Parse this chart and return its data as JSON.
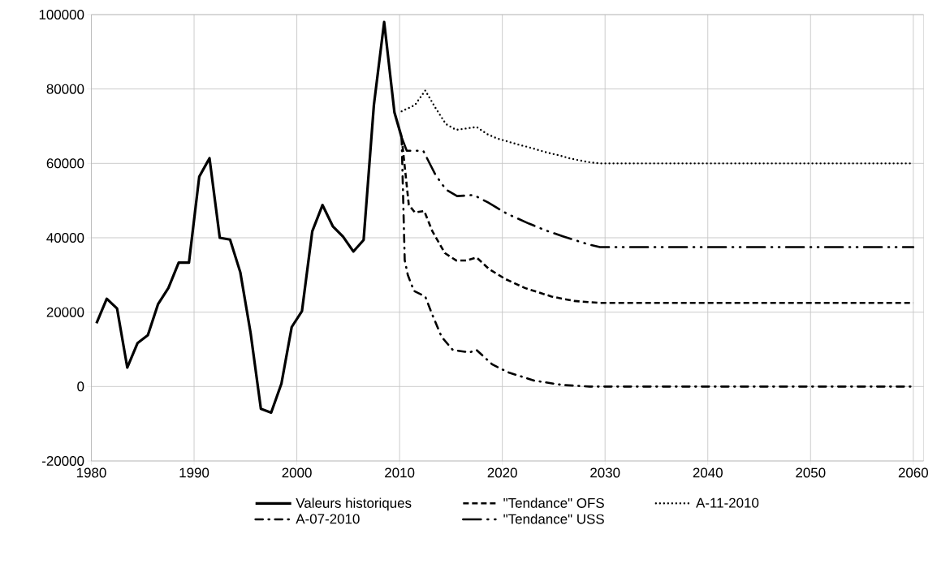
{
  "chart_data": {
    "type": "line",
    "xlim": [
      1980,
      2061
    ],
    "ylim": [
      -20000,
      100000
    ],
    "xticks": [
      1980,
      1990,
      2000,
      2010,
      2020,
      2030,
      2040,
      2050,
      2060
    ],
    "yticks": [
      -20000,
      0,
      20000,
      40000,
      60000,
      80000,
      100000
    ],
    "grid": true,
    "legend": "bottom",
    "series": [
      {
        "name": "Valeurs historiques",
        "color": "#000000",
        "line_style": "solid",
        "x": [
          1980.5,
          1981.5,
          1982.5,
          1983.5,
          1984.5,
          1985.5,
          1986.5,
          1987.5,
          1988.5,
          1989.5,
          1990.5,
          1991.5,
          1992.5,
          1993.5,
          1994.5,
          1995.5,
          1996.5,
          1997.5,
          1998.5,
          1999.5,
          2000.5,
          2001.5,
          2002.5,
          2003.5,
          2004.5,
          2005.5,
          2006.5,
          2007.5,
          2008.5,
          2009.5,
          2010.2
        ],
        "values": [
          17000,
          23600,
          21000,
          5100,
          11700,
          13800,
          22200,
          26500,
          33300,
          33300,
          56400,
          61400,
          40000,
          39500,
          30700,
          14400,
          -6000,
          -7000,
          800,
          16000,
          20300,
          41700,
          48800,
          43100,
          40300,
          36300,
          39400,
          75700,
          98000,
          73700,
          67000
        ]
      },
      {
        "name": "\"Tendance\" OFS",
        "color": "#000000",
        "line_style": "dashed",
        "x": [
          2010.2,
          2010.9,
          2011.5,
          2012.4,
          2013.2,
          2014.4,
          2015.5,
          2016.5,
          2017.5,
          2018.7,
          2020.3,
          2022.2,
          2024.8,
          2027.0,
          2029.5,
          2060
        ],
        "values": [
          67000,
          48800,
          46800,
          47200,
          41700,
          35900,
          33900,
          33900,
          34700,
          31600,
          28900,
          26500,
          24200,
          23000,
          22500,
          22500
        ]
      },
      {
        "name": "A-11-2010",
        "color": "#000000",
        "line_style": "dotted",
        "x": [
          2010.2,
          2011.5,
          2012.5,
          2013.5,
          2014.5,
          2015.5,
          2016.5,
          2017.5,
          2018.5,
          2019.5,
          2020.5,
          2021.5,
          2022.5,
          2023.5,
          2024.5,
          2025.5,
          2026.5,
          2027.5,
          2028.5,
          2029.5,
          2060
        ],
        "values": [
          74000,
          75700,
          79600,
          74900,
          70600,
          69000,
          69400,
          69800,
          67900,
          66700,
          65900,
          65100,
          64400,
          63600,
          62800,
          62200,
          61400,
          60800,
          60300,
          60000,
          60000
        ]
      },
      {
        "name": "A-07-2010",
        "color": "#000000",
        "line_style": "dash-dot",
        "x": [
          2010.2,
          2010.5,
          2010.8,
          2011.4,
          2012.5,
          2013.1,
          2014.1,
          2015.2,
          2016.8,
          2017.5,
          2019.0,
          2020.5,
          2023.1,
          2025.9,
          2028.5,
          2060
        ],
        "values": [
          67000,
          34000,
          30000,
          25700,
          24200,
          19900,
          13300,
          9800,
          9200,
          9800,
          6000,
          3900,
          1600,
          400,
          0,
          0
        ]
      },
      {
        "name": "\"Tendance\" USS",
        "color": "#000000",
        "line_style": "long-dash-dot-dot",
        "x": [
          2010.2,
          2010.7,
          2012.3,
          2013.5,
          2014.5,
          2015.6,
          2017.2,
          2018.6,
          2020.5,
          2022.6,
          2024.2,
          2025.9,
          2028.4,
          2029.5,
          2060
        ],
        "values": [
          67000,
          63400,
          63400,
          56900,
          53000,
          51200,
          51500,
          49500,
          46400,
          43800,
          42000,
          40400,
          38200,
          37500,
          37500
        ]
      }
    ]
  }
}
